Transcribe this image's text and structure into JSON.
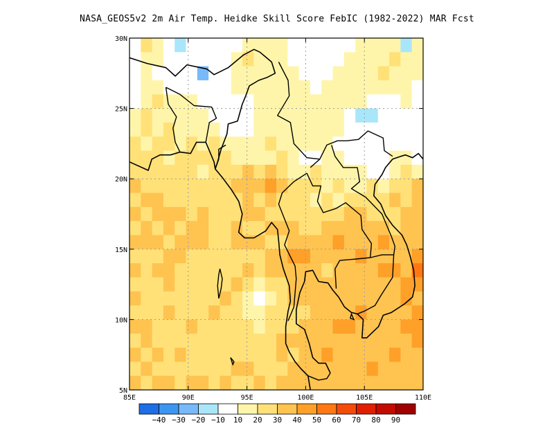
{
  "title": "NASA_GEOS5v2  2m Air Temp. Heidke Skill Score FebIC (1982-2022) MAR Fcst",
  "map": {
    "lon_range": [
      85,
      110
    ],
    "lat_range": [
      5,
      30
    ],
    "x_ticks": [
      {
        "value": 85,
        "label": "85E"
      },
      {
        "value": 90,
        "label": "90E"
      },
      {
        "value": 95,
        "label": "95E"
      },
      {
        "value": 100,
        "label": "100E"
      },
      {
        "value": 105,
        "label": "105E"
      },
      {
        "value": 110,
        "label": "110E"
      }
    ],
    "y_ticks": [
      {
        "value": 5,
        "label": "5N"
      },
      {
        "value": 10,
        "label": "10N"
      },
      {
        "value": 15,
        "label": "15N"
      },
      {
        "value": 20,
        "label": "20N"
      },
      {
        "value": 25,
        "label": "25N"
      },
      {
        "value": 30,
        "label": "30N"
      }
    ],
    "gridlines": "dotted"
  },
  "colorbar": {
    "colors": [
      "#1e6ee6",
      "#3c96f0",
      "#78b9fa",
      "#aae6fa",
      "#ffffff",
      "#fff5aa",
      "#ffe178",
      "#ffc350",
      "#ffa028",
      "#ff7814",
      "#f54b0a",
      "#e11e00",
      "#c30a00",
      "#a00000"
    ],
    "labels": [
      "-40",
      "-30",
      "-20",
      "-10",
      "10",
      "20",
      "30",
      "40",
      "50",
      "60",
      "70",
      "80",
      "90"
    ]
  },
  "field": {
    "description_levels": "skill score bins: 0=white, 1=10-20, 2=20-30, 3=30-40, 4=40-50, 5=50-60, -1=-10..-20",
    "color_by_level": {
      "-2": "#78b9fa",
      "-1": "#aae6fa",
      "0": "#ffffff",
      "1": "#fff5aa",
      "2": "#ffe178",
      "3": "#ffc350",
      "4": "#ffa028",
      "5": "#ff7814"
    },
    "grid_lat_top_to_bottom": [
      [
        0,
        2,
        1,
        0,
        -1,
        0,
        0,
        0,
        0,
        0,
        1,
        1,
        1,
        1,
        0,
        0,
        0,
        0,
        0,
        0,
        1,
        1,
        1,
        1,
        -1,
        1
      ],
      [
        0,
        1,
        1,
        0,
        0,
        0,
        0,
        0,
        0,
        1,
        2,
        1,
        1,
        1,
        0,
        0,
        0,
        0,
        0,
        1,
        1,
        1,
        1,
        2,
        1,
        1
      ],
      [
        0,
        1,
        0,
        0,
        0,
        0,
        -2,
        0,
        0,
        1,
        1,
        1,
        1,
        1,
        1,
        0,
        0,
        0,
        1,
        1,
        1,
        1,
        2,
        1,
        1,
        1
      ],
      [
        0,
        1,
        1,
        0,
        0,
        0,
        0,
        0,
        0,
        1,
        1,
        1,
        1,
        1,
        1,
        1,
        0,
        1,
        1,
        1,
        1,
        1,
        1,
        1,
        1,
        0
      ],
      [
        0,
        1,
        2,
        1,
        1,
        1,
        0,
        0,
        0,
        0,
        0,
        1,
        1,
        1,
        1,
        1,
        1,
        1,
        1,
        1,
        1,
        0,
        0,
        0,
        1,
        0
      ],
      [
        1,
        2,
        1,
        1,
        1,
        1,
        1,
        0,
        0,
        0,
        0,
        1,
        1,
        1,
        1,
        1,
        1,
        1,
        1,
        0,
        -1,
        -1,
        0,
        0,
        0,
        0
      ],
      [
        1,
        2,
        1,
        2,
        1,
        1,
        1,
        1,
        0,
        0,
        0,
        1,
        1,
        1,
        1,
        1,
        1,
        1,
        1,
        0,
        0,
        0,
        0,
        0,
        0,
        0
      ],
      [
        2,
        1,
        2,
        2,
        1,
        2,
        1,
        2,
        1,
        1,
        1,
        1,
        2,
        1,
        1,
        1,
        1,
        1,
        0,
        0,
        0,
        0,
        0,
        0,
        0,
        0
      ],
      [
        2,
        2,
        2,
        1,
        2,
        2,
        2,
        2,
        2,
        1,
        1,
        1,
        1,
        2,
        1,
        0,
        0,
        1,
        1,
        0,
        0,
        0,
        0,
        1,
        1,
        0
      ],
      [
        2,
        2,
        2,
        2,
        2,
        2,
        1,
        2,
        2,
        2,
        3,
        2,
        3,
        2,
        1,
        1,
        2,
        1,
        1,
        1,
        1,
        0,
        0,
        1,
        2,
        1
      ],
      [
        3,
        2,
        2,
        2,
        2,
        2,
        2,
        2,
        2,
        3,
        3,
        3,
        4,
        3,
        2,
        2,
        2,
        1,
        2,
        1,
        1,
        2,
        1,
        2,
        2,
        3
      ],
      [
        2,
        3,
        3,
        2,
        2,
        2,
        2,
        2,
        2,
        2,
        3,
        2,
        3,
        2,
        2,
        2,
        1,
        2,
        1,
        2,
        2,
        2,
        2,
        3,
        2,
        3
      ],
      [
        3,
        2,
        3,
        3,
        3,
        2,
        3,
        2,
        2,
        2,
        3,
        3,
        2,
        2,
        2,
        2,
        2,
        2,
        2,
        3,
        3,
        2,
        2,
        2,
        3,
        3
      ],
      [
        2,
        3,
        2,
        3,
        2,
        3,
        3,
        2,
        2,
        3,
        2,
        2,
        3,
        3,
        3,
        2,
        2,
        3,
        3,
        3,
        3,
        3,
        3,
        2,
        3,
        3
      ],
      [
        3,
        3,
        3,
        2,
        3,
        3,
        3,
        2,
        2,
        3,
        3,
        3,
        2,
        2,
        3,
        3,
        3,
        3,
        4,
        3,
        3,
        3,
        4,
        3,
        3,
        3
      ],
      [
        2,
        2,
        2,
        3,
        3,
        2,
        2,
        2,
        2,
        2,
        2,
        2,
        3,
        3,
        4,
        4,
        3,
        3,
        3,
        3,
        4,
        3,
        3,
        3,
        3,
        4
      ],
      [
        3,
        2,
        3,
        3,
        2,
        2,
        2,
        2,
        2,
        2,
        3,
        2,
        3,
        3,
        3,
        3,
        3,
        2,
        3,
        3,
        3,
        3,
        4,
        4,
        3,
        5
      ],
      [
        2,
        2,
        2,
        3,
        2,
        2,
        2,
        2,
        2,
        3,
        2,
        1,
        2,
        2,
        3,
        3,
        3,
        3,
        3,
        3,
        3,
        3,
        3,
        3,
        4,
        4
      ],
      [
        3,
        2,
        2,
        2,
        2,
        2,
        2,
        2,
        3,
        2,
        1,
        0,
        1,
        2,
        3,
        3,
        3,
        3,
        3,
        3,
        3,
        3,
        3,
        3,
        4,
        3
      ],
      [
        2,
        2,
        2,
        3,
        2,
        2,
        2,
        3,
        2,
        2,
        1,
        1,
        2,
        2,
        2,
        2,
        3,
        3,
        3,
        3,
        4,
        3,
        3,
        3,
        3,
        4
      ],
      [
        3,
        3,
        2,
        2,
        2,
        3,
        2,
        2,
        2,
        2,
        2,
        1,
        2,
        2,
        2,
        3,
        3,
        3,
        4,
        4,
        3,
        3,
        3,
        3,
        4,
        4
      ],
      [
        2,
        3,
        2,
        2,
        2,
        2,
        2,
        2,
        2,
        2,
        2,
        2,
        2,
        3,
        3,
        3,
        3,
        3,
        3,
        3,
        3,
        3,
        3,
        3,
        3,
        4
      ],
      [
        3,
        2,
        3,
        2,
        3,
        2,
        2,
        2,
        2,
        2,
        2,
        2,
        2,
        3,
        2,
        3,
        3,
        4,
        3,
        3,
        3,
        3,
        3,
        4,
        3,
        3
      ],
      [
        2,
        3,
        2,
        2,
        2,
        2,
        2,
        2,
        2,
        3,
        3,
        2,
        2,
        2,
        3,
        3,
        3,
        3,
        3,
        3,
        3,
        4,
        3,
        3,
        3,
        3
      ],
      [
        3,
        2,
        3,
        3,
        2,
        3,
        3,
        2,
        3,
        2,
        2,
        3,
        2,
        3,
        3,
        3,
        3,
        3,
        3,
        3,
        3,
        3,
        3,
        3,
        3,
        3
      ]
    ]
  },
  "coastline_lon_lat": [
    [
      [
        85,
        28.6
      ],
      [
        86.5,
        28.2
      ],
      [
        88.1,
        27.9
      ],
      [
        88.9,
        27.3
      ],
      [
        89.9,
        28.1
      ],
      [
        91.6,
        27.8
      ],
      [
        92.2,
        27.4
      ],
      [
        93.4,
        27.9
      ],
      [
        94.7,
        28.8
      ],
      [
        95.6,
        29.2
      ],
      [
        96.1,
        29.0
      ],
      [
        97.1,
        28.3
      ],
      [
        97.4,
        27.5
      ],
      [
        96.7,
        27.2
      ],
      [
        96.0,
        27.0
      ],
      [
        95.2,
        26.6
      ],
      [
        94.9,
        25.9
      ],
      [
        94.6,
        25.3
      ],
      [
        94.2,
        24.1
      ],
      [
        93.4,
        23.9
      ],
      [
        93.3,
        23.2
      ],
      [
        92.8,
        22.1
      ],
      [
        92.5,
        21.2
      ],
      [
        92.3,
        20.7
      ],
      [
        92.9,
        20.1
      ],
      [
        93.7,
        19.2
      ],
      [
        94.3,
        18.4
      ],
      [
        94.6,
        17.5
      ],
      [
        94.3,
        16.2
      ],
      [
        94.8,
        15.8
      ],
      [
        95.6,
        15.8
      ],
      [
        96.6,
        16.3
      ],
      [
        97.1,
        16.9
      ],
      [
        97.6,
        16.4
      ],
      [
        97.7,
        15.6
      ],
      [
        97.8,
        14.6
      ],
      [
        98.1,
        13.6
      ],
      [
        98.6,
        12.4
      ],
      [
        98.7,
        11.3
      ],
      [
        98.5,
        10.6
      ],
      [
        98.3,
        9.5
      ],
      [
        98.3,
        8.3
      ],
      [
        98.6,
        7.7
      ],
      [
        99.1,
        7.0
      ],
      [
        99.6,
        6.5
      ],
      [
        100.2,
        6.0
      ],
      [
        100.4,
        5.0
      ]
    ],
    [
      [
        85,
        21.2
      ],
      [
        86.6,
        20.6
      ],
      [
        86.9,
        21.4
      ],
      [
        87.6,
        21.7
      ],
      [
        88.5,
        21.7
      ],
      [
        89.3,
        21.9
      ],
      [
        90.2,
        21.8
      ],
      [
        90.7,
        22.6
      ],
      [
        91.5,
        22.6
      ],
      [
        91.9,
        21.8
      ],
      [
        92.2,
        21.2
      ],
      [
        92.3,
        20.7
      ]
    ],
    [
      [
        102.1,
        6.2
      ],
      [
        101.7,
        6.9
      ],
      [
        101.1,
        6.9
      ],
      [
        100.6,
        7.3
      ],
      [
        100.3,
        8.3
      ],
      [
        99.9,
        9.3
      ],
      [
        99.2,
        9.7
      ],
      [
        99.2,
        10.7
      ],
      [
        99.5,
        11.9
      ],
      [
        99.9,
        12.7
      ],
      [
        100.0,
        13.4
      ],
      [
        100.6,
        13.5
      ],
      [
        100.9,
        13.0
      ],
      [
        101.1,
        12.7
      ],
      [
        101.9,
        12.6
      ],
      [
        102.3,
        12.1
      ],
      [
        102.8,
        11.6
      ],
      [
        103.3,
        10.9
      ],
      [
        103.9,
        10.5
      ],
      [
        104.4,
        10.4
      ],
      [
        104.9,
        10.0
      ],
      [
        104.8,
        8.7
      ],
      [
        105.2,
        8.7
      ],
      [
        106.2,
        9.5
      ],
      [
        106.6,
        10.3
      ],
      [
        107.3,
        10.5
      ],
      [
        108.4,
        11.1
      ],
      [
        109.1,
        11.6
      ],
      [
        109.3,
        12.4
      ],
      [
        109.2,
        13.5
      ],
      [
        108.9,
        14.5
      ],
      [
        108.6,
        15.3
      ],
      [
        108.2,
        16.0
      ],
      [
        107.4,
        16.7
      ],
      [
        106.8,
        17.4
      ],
      [
        106.4,
        18.2
      ],
      [
        105.8,
        18.8
      ],
      [
        105.9,
        19.6
      ],
      [
        106.5,
        20.3
      ],
      [
        106.8,
        20.8
      ],
      [
        107.4,
        21.4
      ],
      [
        108.1,
        21.6
      ],
      [
        108.5,
        21.7
      ],
      [
        109.1,
        21.5
      ],
      [
        109.6,
        21.8
      ],
      [
        110,
        21.4
      ]
    ]
  ],
  "borders_lon_lat": [
    [
      [
        88.1,
        26.5
      ],
      [
        88.3,
        25.3
      ],
      [
        89.0,
        24.4
      ],
      [
        88.7,
        23.6
      ],
      [
        88.9,
        22.6
      ],
      [
        89.3,
        21.9
      ]
    ],
    [
      [
        88.1,
        26.5
      ],
      [
        89.3,
        26.0
      ],
      [
        90.5,
        25.2
      ],
      [
        92.0,
        25.1
      ],
      [
        92.4,
        24.3
      ],
      [
        91.8,
        24.0
      ],
      [
        91.5,
        22.6
      ]
    ],
    [
      [
        92.3,
        20.7
      ],
      [
        92.6,
        21.4
      ],
      [
        92.6,
        22.1
      ],
      [
        93.2,
        22.4
      ]
    ],
    [
      [
        97.7,
        28.3
      ],
      [
        98.5,
        27.0
      ],
      [
        98.6,
        25.9
      ],
      [
        97.6,
        24.5
      ],
      [
        98.7,
        24.0
      ],
      [
        99.0,
        22.5
      ],
      [
        100.1,
        21.5
      ],
      [
        101.2,
        21.4
      ],
      [
        100.4,
        20.8
      ]
    ],
    [
      [
        100.1,
        20.4
      ],
      [
        99.0,
        19.8
      ],
      [
        98.0,
        19.0
      ],
      [
        97.7,
        18.2
      ],
      [
        98.6,
        16.3
      ],
      [
        98.2,
        15.3
      ],
      [
        99.1,
        13.8
      ],
      [
        99.2,
        12.9
      ],
      [
        99.0,
        10.9
      ],
      [
        98.5,
        9.9
      ]
    ],
    [
      [
        100.1,
        20.4
      ],
      [
        100.6,
        19.5
      ],
      [
        101.3,
        19.5
      ],
      [
        101.0,
        18.4
      ],
      [
        101.5,
        17.6
      ],
      [
        102.6,
        17.9
      ],
      [
        103.4,
        18.3
      ],
      [
        104.7,
        17.4
      ],
      [
        104.8,
        16.4
      ],
      [
        105.6,
        15.4
      ],
      [
        105.5,
        14.4
      ]
    ],
    [
      [
        105.5,
        14.4
      ],
      [
        104.3,
        14.3
      ],
      [
        102.9,
        14.2
      ],
      [
        102.5,
        13.6
      ],
      [
        102.6,
        12.2
      ]
    ],
    [
      [
        105.5,
        14.4
      ],
      [
        106.5,
        14.6
      ],
      [
        107.5,
        14.6
      ],
      [
        107.4,
        13.0
      ],
      [
        106.4,
        11.7
      ],
      [
        105.9,
        11.0
      ],
      [
        105.0,
        10.6
      ],
      [
        104.4,
        10.4
      ]
    ],
    [
      [
        101.2,
        21.4
      ],
      [
        101.8,
        22.4
      ],
      [
        102.7,
        22.7
      ],
      [
        103.5,
        22.7
      ],
      [
        104.5,
        22.8
      ],
      [
        105.3,
        23.4
      ],
      [
        106.6,
        22.9
      ],
      [
        106.7,
        22.0
      ],
      [
        107.4,
        21.6
      ]
    ],
    [
      [
        102.2,
        22.4
      ],
      [
        102.5,
        21.6
      ],
      [
        103.2,
        20.8
      ],
      [
        104.4,
        20.8
      ],
      [
        104.6,
        19.8
      ],
      [
        103.9,
        19.3
      ],
      [
        105.1,
        18.7
      ],
      [
        106.5,
        17.5
      ],
      [
        107.3,
        15.9
      ],
      [
        107.6,
        15.2
      ],
      [
        107.5,
        14.6
      ]
    ],
    [
      [
        100.2,
        6.0
      ],
      [
        101.1,
        5.7
      ],
      [
        101.8,
        5.8
      ],
      [
        102.1,
        6.2
      ]
    ]
  ],
  "islands_lon_lat": [
    [
      [
        92.7,
        13.6
      ],
      [
        92.9,
        12.9
      ],
      [
        92.8,
        12.2
      ],
      [
        92.6,
        11.5
      ],
      [
        92.5,
        12.4
      ],
      [
        92.6,
        13.2
      ]
    ],
    [
      [
        93.6,
        7.3
      ],
      [
        93.9,
        7.0
      ],
      [
        93.8,
        6.8
      ]
    ],
    [
      [
        103.9,
        10.4
      ],
      [
        104.1,
        10.0
      ],
      [
        103.8,
        10.1
      ]
    ]
  ]
}
